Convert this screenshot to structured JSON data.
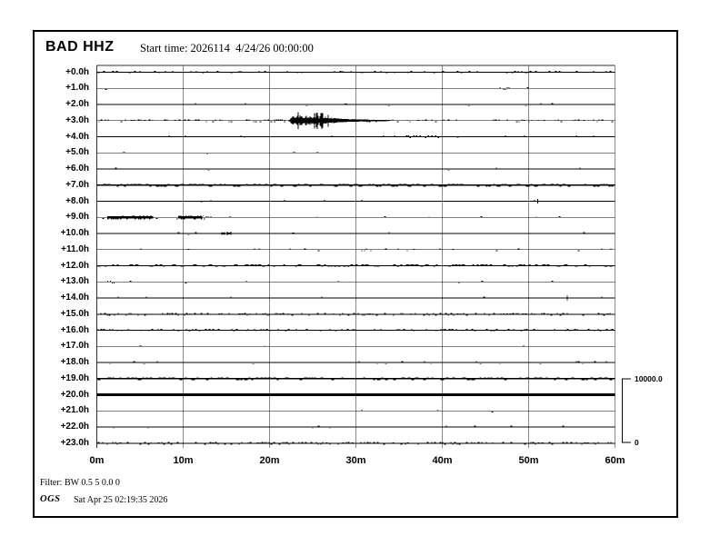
{
  "header": {
    "station": "BAD HHZ",
    "start_time": "Start time: 2026114  4/24/26 00:00:00"
  },
  "footer": {
    "filter": "Filter: BW 0.5 5 0.0 0",
    "brand": "OGS",
    "timestamp": "Sat Apr 25 02:19:35 2026"
  },
  "scale_bar": {
    "top": "10000.0",
    "bottom": "0"
  },
  "colors": {
    "trace": "#000000",
    "grid": "#8a8a8a",
    "axis": "#2f2f2f"
  },
  "chart_data": {
    "type": "helicorder",
    "title": "BAD HHZ",
    "start_time_label": "Start time: 2026114  4/24/26 00:00:00",
    "x_axis": {
      "unit": "minutes",
      "range": [
        0,
        60
      ],
      "ticks": [
        "0m",
        "10m",
        "20m",
        "30m",
        "40m",
        "50m",
        "60m"
      ]
    },
    "y_axis": {
      "unit": "hours_offset",
      "hours_per_row": 1
    },
    "amplitude_scale": {
      "max_label": "10000.0",
      "min_label": "0"
    },
    "event": {
      "row_index": 3,
      "row_label": "+3.0h",
      "start_minute": 22.1,
      "main_end_minute": 27.6,
      "tail_end_minute": 34.0,
      "description": "seismic event burst with decaying coda"
    },
    "rows": [
      {
        "label": "+0.0h",
        "noise": 0.2,
        "base": 0.9,
        "marks": []
      },
      {
        "label": "+1.0h",
        "noise": 0.018,
        "base": 0.9,
        "marks": [
          [
            46.2,
            48.0,
            "dots"
          ]
        ]
      },
      {
        "label": "+2.0h",
        "noise": 0.007,
        "base": 0.9,
        "marks": [
          [
            28.7,
            29.0,
            "dash"
          ]
        ]
      },
      {
        "label": "+3.0h",
        "noise": 0.22,
        "base": 0.9,
        "marks": [
          [
            19.8,
            21.9,
            "dots"
          ]
        ],
        "event": true
      },
      {
        "label": "+4.0h",
        "noise": 0.03,
        "base": 0.9,
        "marks": [
          [
            35.8,
            39.6,
            "dots"
          ]
        ]
      },
      {
        "label": "+5.0h",
        "noise": 0.007,
        "base": 0.9,
        "marks": [
          [
            3.0,
            3.3,
            "dash"
          ],
          [
            22.7,
            23.0,
            "dash"
          ],
          [
            25.4,
            25.7,
            "dash"
          ]
        ]
      },
      {
        "label": "+6.0h",
        "noise": 0.003,
        "base": 0.9,
        "marks": []
      },
      {
        "label": "+7.0h",
        "noise": 0.55,
        "base": 1.7,
        "marks": []
      },
      {
        "label": "+8.0h",
        "noise": 0.012,
        "base": 0.9,
        "marks": [
          [
            51.0,
            51.2,
            "tick"
          ]
        ]
      },
      {
        "label": "+9.0h",
        "noise": 0.018,
        "base": 0.9,
        "marks": [
          [
            1.2,
            6.5,
            "seg"
          ],
          [
            9.4,
            12.2,
            "seg"
          ],
          [
            12.5,
            13.3,
            "dots"
          ],
          [
            15.3,
            15.6,
            "dash"
          ]
        ]
      },
      {
        "label": "+10.0h",
        "noise": 0.012,
        "base": 0.9,
        "marks": [
          [
            14.4,
            15.5,
            "burst"
          ],
          [
            22.6,
            22.9,
            "dash"
          ]
        ]
      },
      {
        "label": "+11.0h",
        "noise": 0.028,
        "base": 0.9,
        "marks": [
          [
            30.4,
            32.0,
            "dots"
          ]
        ]
      },
      {
        "label": "+12.0h",
        "noise": 0.45,
        "base": 1.3,
        "marks": []
      },
      {
        "label": "+13.0h",
        "noise": 0.014,
        "base": 0.9,
        "marks": [
          [
            1.2,
            2.2,
            "dots"
          ]
        ]
      },
      {
        "label": "+14.0h",
        "noise": 0.01,
        "base": 0.9,
        "marks": [
          [
            54.4,
            54.6,
            "tick"
          ]
        ]
      },
      {
        "label": "+15.0h",
        "noise": 0.26,
        "base": 1.0,
        "marks": []
      },
      {
        "label": "+16.0h",
        "noise": 0.29,
        "base": 1.0,
        "marks": []
      },
      {
        "label": "+17.0h",
        "noise": 0.004,
        "base": 0.9,
        "marks": [
          [
            4.9,
            5.2,
            "dash"
          ]
        ]
      },
      {
        "label": "+18.0h",
        "noise": 0.05,
        "base": 0.9,
        "marks": []
      },
      {
        "label": "+19.0h",
        "noise": 0.45,
        "base": 1.4,
        "marks": []
      },
      {
        "label": "+20.0h",
        "noise": 0.02,
        "base": 2.8,
        "marks": []
      },
      {
        "label": "+21.0h",
        "noise": 0.003,
        "base": 0.9,
        "marks": []
      },
      {
        "label": "+22.0h",
        "noise": 0.022,
        "base": 0.9,
        "marks": []
      },
      {
        "label": "+23.0h",
        "noise": 0.3,
        "base": 1.0,
        "marks": []
      }
    ]
  }
}
